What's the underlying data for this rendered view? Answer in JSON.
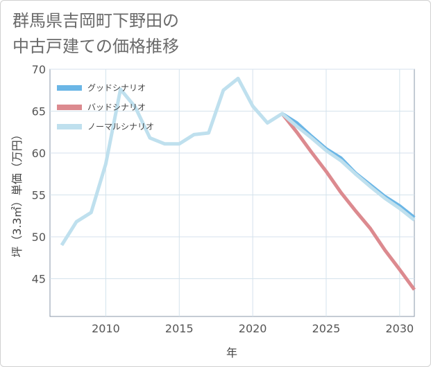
{
  "title_lines": [
    "群馬県吉岡町下野田の",
    "中古戸建ての価格推移"
  ],
  "chart_data": {
    "type": "line",
    "title": "群馬県吉岡町下野田の中古戸建ての価格推移",
    "xlabel": "年",
    "ylabel": "坪（3.3㎡）単価（万円）",
    "xlim": [
      2006.2,
      2031
    ],
    "ylim": [
      40.5,
      70
    ],
    "x_ticks": [
      2010,
      2015,
      2020,
      2025,
      2030
    ],
    "y_ticks": [
      45,
      50,
      55,
      60,
      65,
      70
    ],
    "grid": true,
    "legend_position": "top-left",
    "series": [
      {
        "name": "グッドシナリオ",
        "color": "#6bb6e6",
        "x": [
          2022,
          2023,
          2024,
          2025,
          2026,
          2027,
          2028,
          2029,
          2030,
          2031
        ],
        "y": [
          64.7,
          63.6,
          62.0,
          60.5,
          59.4,
          57.6,
          56.2,
          54.8,
          53.7,
          52.3
        ]
      },
      {
        "name": "バッドシナリオ",
        "color": "#dc8a8f",
        "x": [
          2022,
          2023,
          2024,
          2025,
          2026,
          2027,
          2028,
          2029,
          2030,
          2031
        ],
        "y": [
          64.7,
          62.5,
          60.1,
          57.8,
          55.3,
          53.1,
          51.0,
          48.4,
          46.1,
          43.7
        ]
      },
      {
        "name": "ノーマルシナリオ",
        "color": "#bfe0ee",
        "x": [
          2007,
          2008,
          2009,
          2010,
          2011,
          2012,
          2013,
          2014,
          2015,
          2016,
          2017,
          2018,
          2019,
          2020,
          2021,
          2022,
          2023,
          2024,
          2025,
          2026,
          2027,
          2028,
          2029,
          2030,
          2031
        ],
        "y": [
          49.0,
          51.8,
          52.9,
          58.7,
          67.6,
          65.5,
          61.8,
          61.1,
          61.1,
          62.2,
          62.4,
          67.5,
          68.9,
          65.6,
          63.6,
          64.7,
          63.2,
          61.8,
          60.3,
          59.1,
          57.5,
          56.0,
          54.6,
          53.4,
          52.0
        ]
      }
    ]
  }
}
